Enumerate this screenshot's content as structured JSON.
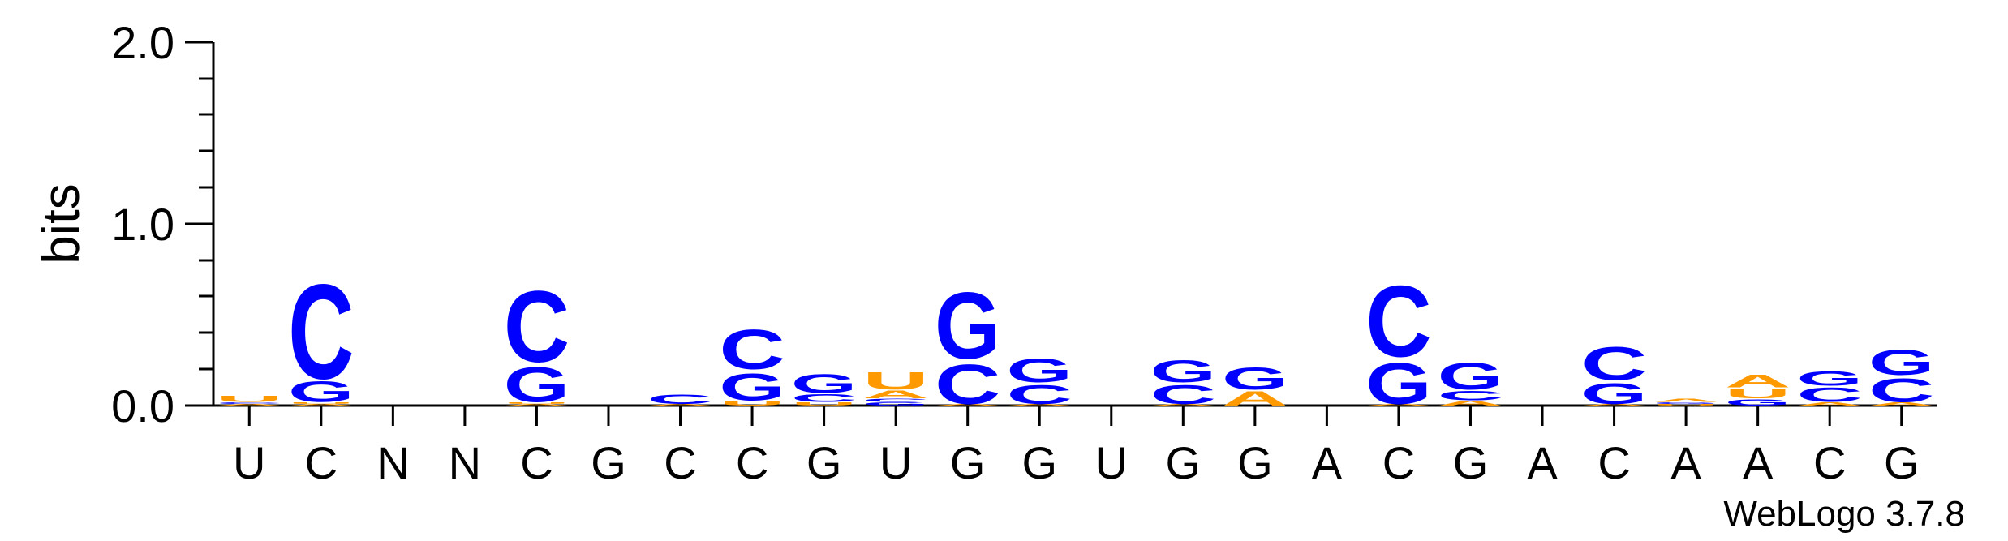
{
  "chart_data": {
    "type": "sequence-logo",
    "ylabel": "bits",
    "ylim": [
      0,
      2.0
    ],
    "yticks": [
      "0.0",
      "1.0",
      "2.0"
    ],
    "positions": [
      "U",
      "C",
      "N",
      "N",
      "C",
      "G",
      "C",
      "C",
      "G",
      "U",
      "G",
      "G",
      "U",
      "G",
      "G",
      "A",
      "C",
      "G",
      "A",
      "C",
      "A",
      "A",
      "C",
      "G"
    ],
    "colors": {
      "A": "#ff9900",
      "C": "#0000ff",
      "G": "#0000ff",
      "U": "#ff9900"
    },
    "stacks": [
      [
        [
          "A",
          0.01
        ],
        [
          "C",
          0.01
        ],
        [
          "U",
          0.04
        ]
      ],
      [
        [
          "A",
          0.01
        ],
        [
          "U",
          0.01
        ],
        [
          "G",
          0.13
        ],
        [
          "C",
          0.6
        ]
      ],
      [],
      [],
      [
        [
          "A",
          0.01
        ],
        [
          "U",
          0.01
        ],
        [
          "G",
          0.22
        ],
        [
          "C",
          0.45
        ]
      ],
      [],
      [
        [
          "A",
          0.01
        ],
        [
          "C",
          0.06
        ]
      ],
      [
        [
          "U",
          0.03
        ],
        [
          "G",
          0.17
        ],
        [
          "C",
          0.25
        ]
      ],
      [
        [
          "U",
          0.02
        ],
        [
          "C",
          0.05
        ],
        [
          "G",
          0.12
        ]
      ],
      [
        [
          "G",
          0.02
        ],
        [
          "C",
          0.02
        ],
        [
          "A",
          0.05
        ],
        [
          "U",
          0.11
        ]
      ],
      [
        [
          "A",
          0.01
        ],
        [
          "C",
          0.25
        ],
        [
          "G",
          0.42
        ]
      ],
      [
        [
          "A",
          0.01
        ],
        [
          "C",
          0.12
        ],
        [
          "G",
          0.15
        ]
      ],
      [],
      [
        [
          "A",
          0.01
        ],
        [
          "C",
          0.12
        ],
        [
          "G",
          0.14
        ]
      ],
      [
        [
          "A",
          0.09
        ],
        [
          "G",
          0.14
        ]
      ],
      [],
      [
        [
          "A",
          0.01
        ],
        [
          "G",
          0.26
        ],
        [
          "C",
          0.45
        ]
      ],
      [
        [
          "A",
          0.03
        ],
        [
          "C",
          0.06
        ],
        [
          "G",
          0.17
        ]
      ],
      [],
      [
        [
          "A",
          0.01
        ],
        [
          "G",
          0.13
        ],
        [
          "C",
          0.21
        ]
      ],
      [
        [
          "U",
          0.01
        ],
        [
          "G",
          0.01
        ],
        [
          "A",
          0.02
        ]
      ],
      [
        [
          "G",
          0.04
        ],
        [
          "U",
          0.06
        ],
        [
          "A",
          0.08
        ]
      ],
      [
        [
          "A",
          0.02
        ],
        [
          "C",
          0.09
        ],
        [
          "G",
          0.09
        ]
      ],
      [
        [
          "A",
          0.02
        ],
        [
          "C",
          0.15
        ],
        [
          "G",
          0.16
        ]
      ]
    ]
  },
  "watermark": "WebLogo 3.7.8"
}
